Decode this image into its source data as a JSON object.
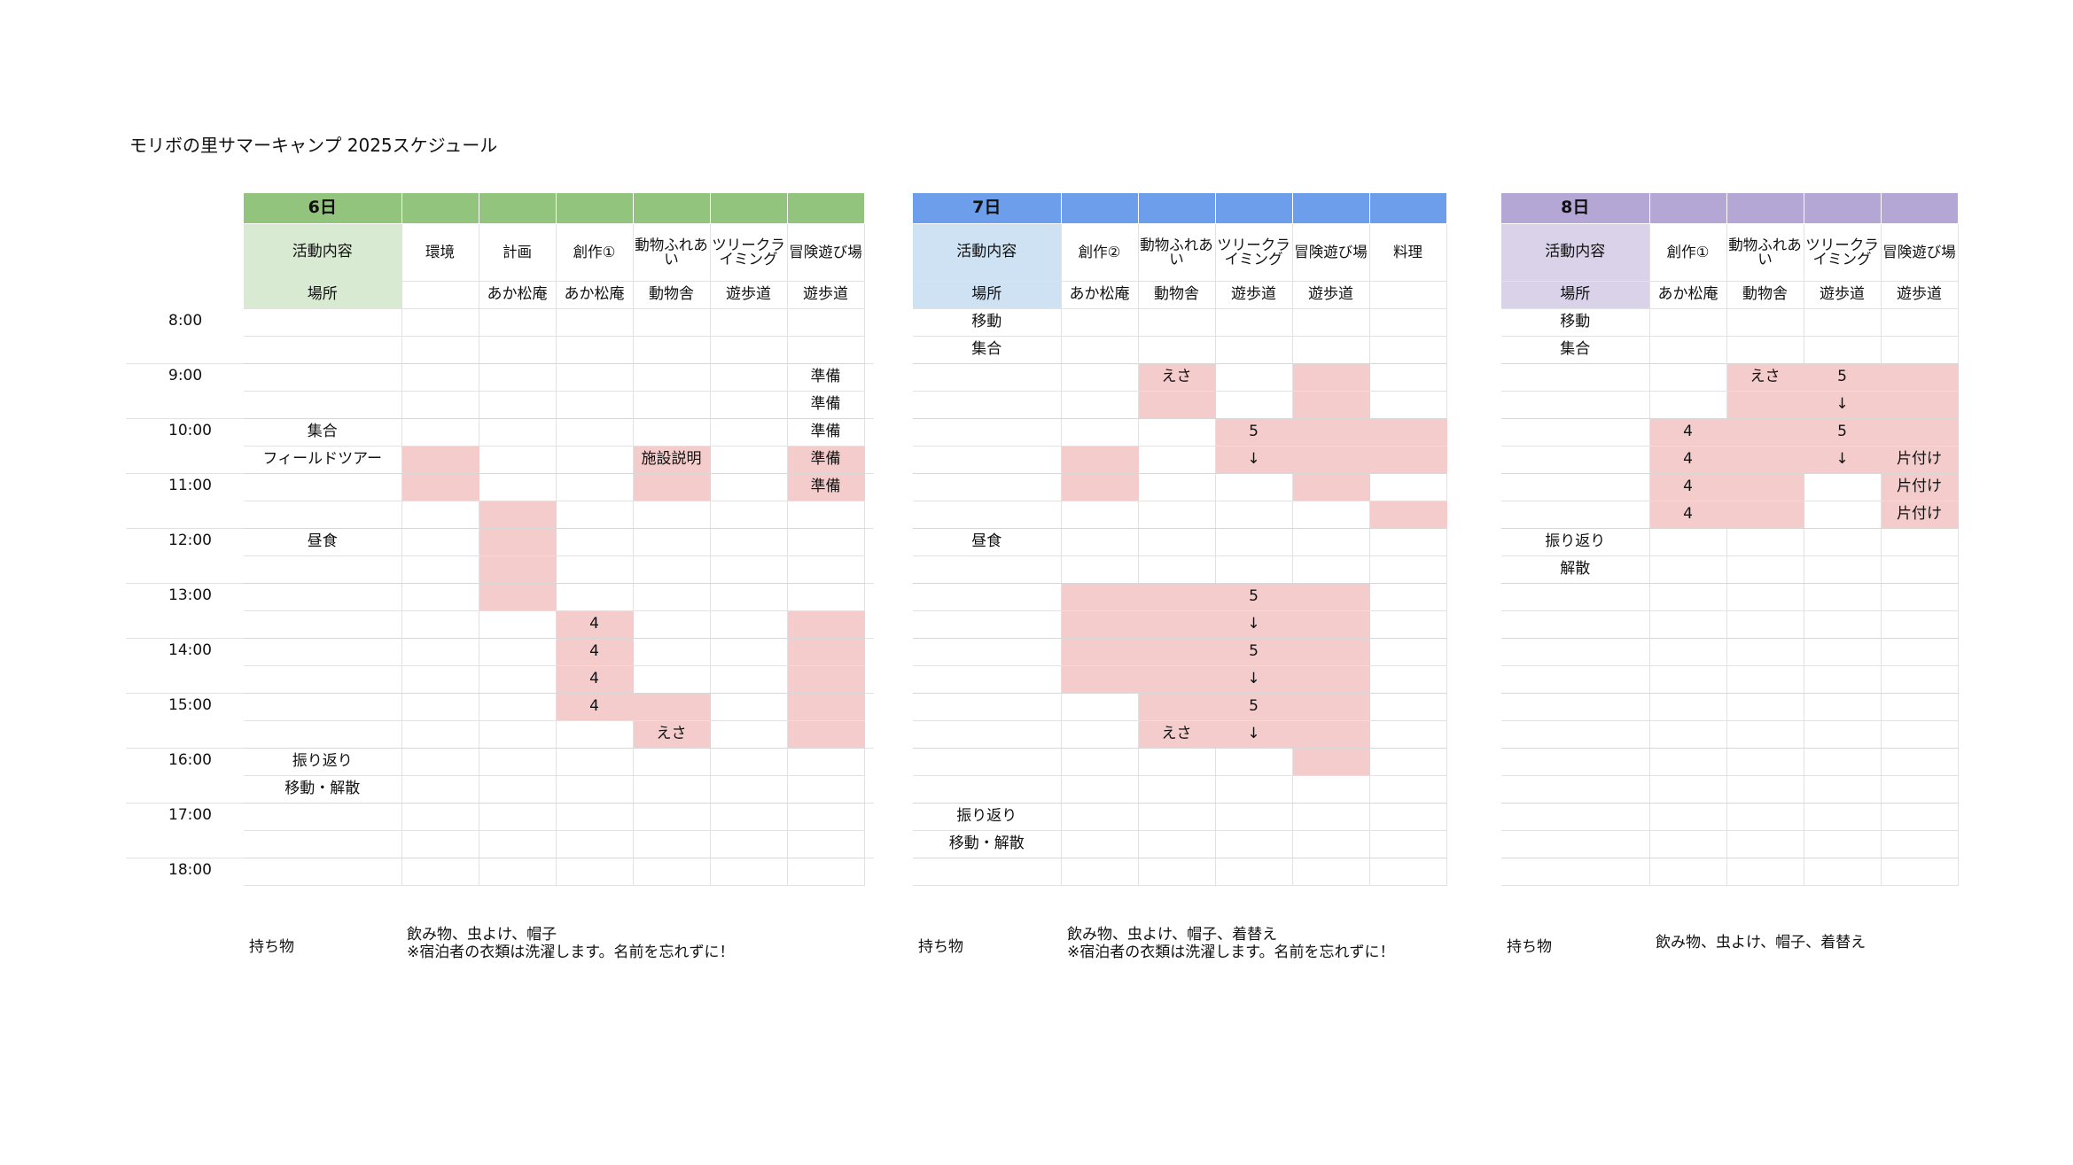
{
  "title": "モリボの里サマーキャンプ 2025スケジュール",
  "times": [
    "8:00",
    "9:00",
    "10:00",
    "11:00",
    "12:00",
    "13:00",
    "14:00",
    "15:00",
    "16:00",
    "17:00",
    "18:00"
  ],
  "colors": {
    "day6": "#93c47d",
    "day6_light": "#d9ead3",
    "day7": "#6d9eeb",
    "day7_light": "#cfe2f3",
    "day8": "#b4a7d6",
    "day8_light": "#d9d2e9",
    "pink": "#f4cccc"
  },
  "days": [
    {
      "label": "6日",
      "header_label": "活動内容",
      "location_label": "場所",
      "activities": [
        "環境",
        "計画",
        "創作①",
        "動物ふれあい",
        "ツリークライミング",
        "冒険遊び場"
      ],
      "locations": [
        "",
        "あか松庵",
        "あか松庵",
        "動物舎",
        "遊歩道",
        "遊歩道"
      ],
      "main": [
        "",
        "",
        "",
        "",
        "集合",
        "フィールドツアー",
        "",
        "",
        "昼食",
        "",
        "",
        "",
        "",
        "",
        "",
        "",
        "振り返り",
        "移動・解散",
        "",
        "",
        ""
      ],
      "cells": {
        "a1": [
          "",
          "",
          "",
          "",
          "",
          "",
          "",
          "",
          "",
          "",
          "",
          "",
          "",
          "",
          "",
          "",
          "",
          "",
          "",
          "",
          ""
        ],
        "a2": [
          "",
          "",
          "",
          "",
          "",
          "",
          "",
          "",
          "",
          "",
          "",
          "",
          "",
          "",
          "",
          "",
          "",
          "",
          "",
          "",
          ""
        ],
        "a3": [
          "",
          "",
          "",
          "",
          "",
          "",
          "",
          "",
          "",
          "",
          "",
          "4",
          "4",
          "4",
          "4",
          "",
          "",
          "",
          "",
          "",
          ""
        ],
        "a4": [
          "",
          "",
          "",
          "",
          "",
          "施設説明",
          "",
          "",
          "",
          "",
          "",
          "",
          "",
          "",
          "",
          "えさ",
          "",
          "",
          "",
          "",
          ""
        ],
        "a5": [
          "",
          "",
          "",
          "",
          "",
          "",
          "",
          "",
          "",
          "",
          "",
          "",
          "",
          "",
          "",
          "",
          "",
          "",
          "",
          "",
          ""
        ],
        "a6": [
          "",
          "",
          "準備",
          "準備",
          "準備",
          "準備",
          "準備",
          "",
          "",
          "",
          "",
          "",
          "",
          "",
          "",
          "",
          "",
          "",
          "",
          "",
          ""
        ]
      },
      "pink": {
        "a1": [
          5,
          6
        ],
        "a2": [
          7,
          8,
          9,
          10
        ],
        "a3": [
          11,
          12,
          13,
          14
        ],
        "a4": [
          5,
          6,
          14,
          15
        ],
        "a5": [],
        "a6": [
          5,
          6,
          11,
          12,
          13,
          14,
          15
        ]
      },
      "items_label": "持ち物",
      "items": [
        "飲み物、虫よけ、帽子",
        "※宿泊者の衣類は洗濯します。名前を忘れずに！"
      ]
    },
    {
      "label": "7日",
      "header_label": "活動内容",
      "location_label": "場所",
      "activities": [
        "創作②",
        "動物ふれあい",
        "ツリークライミング",
        "冒険遊び場",
        "料理"
      ],
      "locations": [
        "あか松庵",
        "動物舎",
        "遊歩道",
        "遊歩道",
        ""
      ],
      "main": [
        "移動",
        "集合",
        "",
        "",
        "",
        "",
        "",
        "",
        "昼食",
        "",
        "",
        "",
        "",
        "",
        "",
        "",
        "",
        "",
        "振り返り",
        "移動・解散",
        ""
      ],
      "cells": {
        "a1": [
          "",
          "",
          "",
          "",
          "",
          "",
          "",
          "",
          "",
          "",
          "",
          "",
          "",
          "",
          "",
          "",
          "",
          "",
          "",
          "",
          ""
        ],
        "a2": [
          "",
          "",
          "えさ",
          "",
          "",
          "",
          "",
          "",
          "",
          "",
          "",
          "",
          "",
          "",
          "",
          "えさ",
          "",
          "",
          "",
          "",
          ""
        ],
        "a3": [
          "",
          "",
          "",
          "",
          "5",
          "↓",
          "",
          "",
          "",
          "",
          "5",
          "↓",
          "5",
          "↓",
          "5",
          "↓",
          "",
          "",
          "",
          "",
          ""
        ],
        "a4": [
          "",
          "",
          "",
          "",
          "",
          "",
          "",
          "",
          "",
          "",
          "",
          "",
          "",
          "",
          "",
          "",
          "",
          "",
          "",
          "",
          ""
        ],
        "a5": [
          "",
          "",
          "",
          "",
          "",
          "",
          "",
          "",
          "",
          "",
          "",
          "",
          "",
          "",
          "",
          "",
          "",
          "",
          "",
          "",
          ""
        ]
      },
      "pink": {
        "a1": [
          5,
          6,
          10,
          11,
          12,
          13
        ],
        "a2": [
          2,
          3,
          10,
          11,
          12,
          13,
          14,
          15
        ],
        "a3": [
          4,
          5,
          10,
          11,
          12,
          13,
          14,
          15
        ],
        "a4": [
          2,
          3,
          4,
          5,
          6,
          10,
          11,
          12,
          13,
          14,
          15,
          16
        ],
        "a5": [
          4,
          5,
          7
        ]
      },
      "items_label": "持ち物",
      "items": [
        "飲み物、虫よけ、帽子、着替え",
        "※宿泊者の衣類は洗濯します。名前を忘れずに！"
      ]
    },
    {
      "label": "8日",
      "header_label": "活動内容",
      "location_label": "場所",
      "activities": [
        "創作①",
        "動物ふれあい",
        "ツリークライミング",
        "冒険遊び場"
      ],
      "locations": [
        "あか松庵",
        "動物舎",
        "遊歩道",
        "遊歩道"
      ],
      "main": [
        "移動",
        "集合",
        "",
        "",
        "",
        "",
        "",
        "",
        "振り返り",
        "解散",
        "",
        "",
        "",
        "",
        "",
        "",
        "",
        "",
        "",
        "",
        ""
      ],
      "cells": {
        "a1": [
          "",
          "",
          "",
          "",
          "4",
          "4",
          "4",
          "4",
          "",
          "",
          "",
          "",
          "",
          "",
          "",
          "",
          "",
          "",
          "",
          "",
          ""
        ],
        "a2": [
          "",
          "",
          "えさ",
          "",
          "",
          "",
          "",
          "",
          "",
          "",
          "",
          "",
          "",
          "",
          "",
          "",
          "",
          "",
          "",
          "",
          ""
        ],
        "a3": [
          "",
          "",
          "5",
          "↓",
          "5",
          "↓",
          "",
          "",
          "",
          "",
          "",
          "",
          "",
          "",
          "",
          "",
          "",
          "",
          "",
          "",
          ""
        ],
        "a4": [
          "",
          "",
          "",
          "",
          "",
          "片付け",
          "片付け",
          "片付け",
          "",
          "",
          "",
          "",
          "",
          "",
          "",
          "",
          "",
          "",
          "",
          "",
          ""
        ]
      },
      "pink": {
        "a1": [
          4,
          5,
          6,
          7
        ],
        "a2": [
          2,
          3,
          4,
          5,
          6,
          7
        ],
        "a3": [
          2,
          3,
          4,
          5
        ],
        "a4": [
          2,
          3,
          4,
          5,
          6,
          7
        ]
      },
      "items_label": "持ち物",
      "items": [
        "飲み物、虫よけ、帽子、着替え"
      ]
    }
  ]
}
